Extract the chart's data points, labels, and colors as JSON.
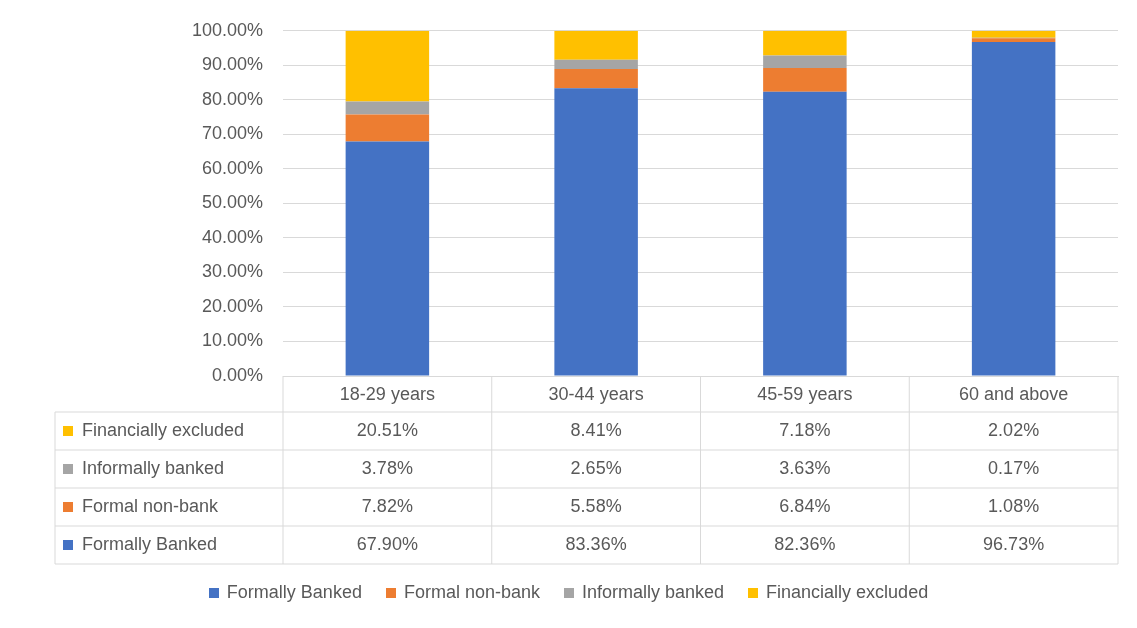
{
  "chart_data": {
    "type": "bar",
    "stacked": true,
    "categories": [
      "18-29 years",
      "30-44 years",
      "45-59 years",
      "60 and above"
    ],
    "series": [
      {
        "name": "Formally Banked",
        "color": "#4472c4",
        "values": [
          67.9,
          83.36,
          82.36,
          96.73
        ],
        "value_labels": [
          "67.90%",
          "83.36%",
          "82.36%",
          "96.73%"
        ]
      },
      {
        "name": "Formal non-bank",
        "color": "#ed7d31",
        "values": [
          7.82,
          5.58,
          6.84,
          1.08
        ],
        "value_labels": [
          "7.82%",
          "5.58%",
          "6.84%",
          "1.08%"
        ]
      },
      {
        "name": "Informally banked",
        "color": "#a5a5a5",
        "values": [
          3.78,
          2.65,
          3.63,
          0.17
        ],
        "value_labels": [
          "3.78%",
          "2.65%",
          "3.63%",
          "0.17%"
        ]
      },
      {
        "name": "Financially excluded",
        "color": "#ffc000",
        "values": [
          20.51,
          8.41,
          7.18,
          2.02
        ],
        "value_labels": [
          "20.51%",
          "8.41%",
          "7.18%",
          "2.02%"
        ]
      }
    ],
    "ylim": [
      0,
      100
    ],
    "yticks": [
      {
        "value": 0,
        "label": "0.00%"
      },
      {
        "value": 10,
        "label": "10.00%"
      },
      {
        "value": 20,
        "label": "20.00%"
      },
      {
        "value": 30,
        "label": "30.00%"
      },
      {
        "value": 40,
        "label": "40.00%"
      },
      {
        "value": 50,
        "label": "50.00%"
      },
      {
        "value": 60,
        "label": "60.00%"
      },
      {
        "value": 70,
        "label": "70.00%"
      },
      {
        "value": 80,
        "label": "80.00%"
      },
      {
        "value": 90,
        "label": "90.00%"
      },
      {
        "value": 100,
        "label": "100.00%"
      }
    ],
    "grid": "y",
    "legend": "bottom"
  }
}
